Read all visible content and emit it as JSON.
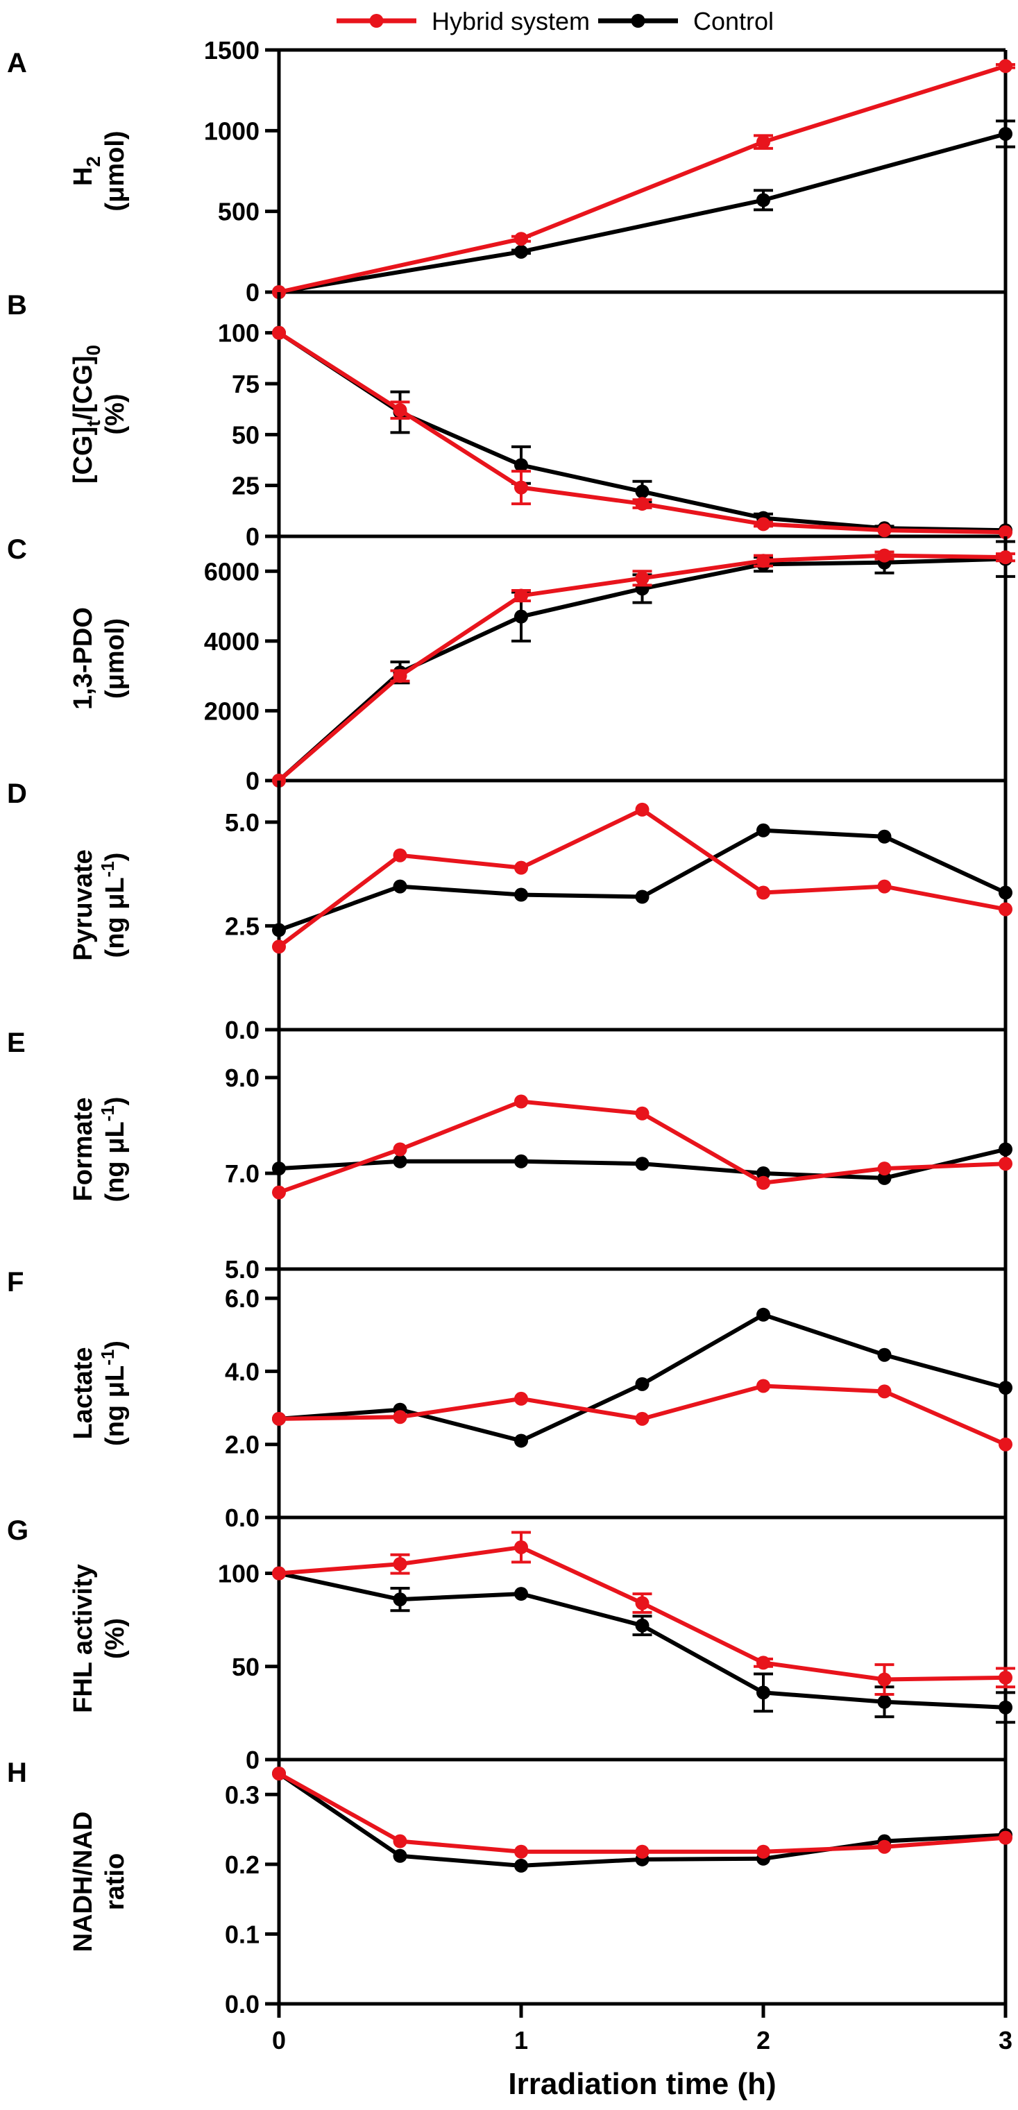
{
  "legend": [
    {
      "name": "Hybrid system",
      "color": "#e8141c"
    },
    {
      "name": "Control",
      "color": "#000000"
    }
  ],
  "x_axis": {
    "label": "Irradiation time (h)",
    "ticks": [
      0,
      1,
      2,
      3
    ],
    "tick_labels": [
      "0",
      "1",
      "2",
      "3"
    ],
    "range": [
      0,
      3
    ]
  },
  "chart_data": [
    {
      "type": "line",
      "panel": "A",
      "ylabel": [
        "H",
        "2",
        "(μmol)"
      ],
      "ylim": [
        0,
        1500
      ],
      "yticks": [
        0,
        500,
        1000,
        1500
      ],
      "ytick_labels": [
        "0",
        "500",
        "1000",
        "1500"
      ],
      "series": [
        {
          "name": "Hybrid system",
          "x": [
            0,
            1,
            2,
            3
          ],
          "y": [
            0,
            330,
            930,
            1400
          ],
          "err": [
            0,
            15,
            40,
            10
          ]
        },
        {
          "name": "Control",
          "x": [
            0,
            1,
            2,
            3
          ],
          "y": [
            0,
            250,
            570,
            980
          ],
          "err": [
            0,
            10,
            60,
            80
          ]
        }
      ]
    },
    {
      "type": "line",
      "panel": "B",
      "ylabel": [
        "[CG]",
        "t",
        "/[CG]",
        "0",
        "(%)"
      ],
      "ylim": [
        0,
        120
      ],
      "yticks": [
        0,
        25,
        50,
        75,
        100
      ],
      "ytick_labels": [
        "0",
        "25",
        "50",
        "75",
        "100"
      ],
      "series": [
        {
          "name": "Hybrid system",
          "x": [
            0,
            0.5,
            1,
            1.5,
            2,
            2.5,
            3
          ],
          "y": [
            100,
            62,
            24,
            16,
            6,
            3,
            2
          ],
          "err": [
            0,
            4,
            8,
            2,
            1,
            0,
            0
          ]
        },
        {
          "name": "Control",
          "x": [
            0,
            0.5,
            1,
            1.5,
            2,
            2.5,
            3
          ],
          "y": [
            100,
            61,
            35,
            22,
            9,
            4,
            3
          ],
          "err": [
            0,
            10,
            9,
            5,
            2,
            1,
            0
          ]
        }
      ]
    },
    {
      "type": "line",
      "panel": "C",
      "ylabel": [
        "1,3-PDO",
        "(μmol)"
      ],
      "ylim": [
        0,
        7000
      ],
      "yticks": [
        0,
        2000,
        4000,
        6000
      ],
      "ytick_labels": [
        "0",
        "2000",
        "4000",
        "6000"
      ],
      "series": [
        {
          "name": "Hybrid system",
          "x": [
            0,
            0.5,
            1,
            1.5,
            2,
            2.5,
            3
          ],
          "y": [
            0,
            3000,
            5300,
            5800,
            6300,
            6450,
            6400
          ],
          "err": [
            0,
            150,
            150,
            200,
            150,
            100,
            100
          ]
        },
        {
          "name": "Control",
          "x": [
            0,
            0.5,
            1,
            1.5,
            2,
            2.5,
            3
          ],
          "y": [
            0,
            3100,
            4700,
            5500,
            6200,
            6250,
            6350
          ],
          "err": [
            0,
            300,
            700,
            400,
            200,
            300,
            500
          ]
        }
      ]
    },
    {
      "type": "line",
      "panel": "D",
      "ylabel": [
        "Pyruvate",
        "(ng μL",
        "-1",
        ")"
      ],
      "ylim": [
        0,
        6
      ],
      "yticks": [
        0,
        2.5,
        5
      ],
      "ytick_labels": [
        "0.0",
        "2.5",
        "5.0"
      ],
      "series": [
        {
          "name": "Hybrid system",
          "x": [
            0,
            0.5,
            1,
            1.5,
            2,
            2.5,
            3
          ],
          "y": [
            2.0,
            4.2,
            3.9,
            5.3,
            3.3,
            3.45,
            2.9
          ],
          "err": [
            0,
            0,
            0,
            0,
            0,
            0,
            0
          ]
        },
        {
          "name": "Control",
          "x": [
            0,
            0.5,
            1,
            1.5,
            2,
            2.5,
            3
          ],
          "y": [
            2.4,
            3.45,
            3.25,
            3.2,
            4.8,
            4.65,
            3.3
          ],
          "err": [
            0,
            0,
            0,
            0,
            0,
            0,
            0
          ]
        }
      ]
    },
    {
      "type": "line",
      "panel": "E",
      "ylabel": [
        "Formate",
        "(ng μL",
        "-1",
        ")"
      ],
      "ylim": [
        5,
        10
      ],
      "yticks": [
        5,
        7,
        9
      ],
      "ytick_labels": [
        "5.0",
        "7.0",
        "9.0"
      ],
      "series": [
        {
          "name": "Hybrid system",
          "x": [
            0,
            0.5,
            1,
            1.5,
            2,
            2.5,
            3
          ],
          "y": [
            6.6,
            7.5,
            8.5,
            8.25,
            6.8,
            7.1,
            7.2
          ],
          "err": [
            0,
            0,
            0,
            0,
            0,
            0,
            0
          ]
        },
        {
          "name": "Control",
          "x": [
            0,
            0.5,
            1,
            1.5,
            2,
            2.5,
            3
          ],
          "y": [
            7.1,
            7.25,
            7.25,
            7.2,
            7.0,
            6.9,
            7.5
          ],
          "err": [
            0,
            0,
            0,
            0,
            0,
            0,
            0
          ]
        }
      ]
    },
    {
      "type": "line",
      "panel": "F",
      "ylabel": [
        "Lactate",
        "(ng μL",
        "-1",
        ")"
      ],
      "ylim": [
        0,
        6.8
      ],
      "yticks": [
        0,
        2,
        4,
        6
      ],
      "ytick_labels": [
        "0.0",
        "2.0",
        "4.0",
        "6.0"
      ],
      "series": [
        {
          "name": "Hybrid system",
          "x": [
            0,
            0.5,
            1,
            1.5,
            2,
            2.5,
            3
          ],
          "y": [
            2.7,
            2.75,
            3.25,
            2.7,
            3.6,
            3.45,
            2.0
          ],
          "err": [
            0,
            0,
            0,
            0,
            0,
            0,
            0
          ]
        },
        {
          "name": "Control",
          "x": [
            0,
            0.5,
            1,
            1.5,
            2,
            2.5,
            3
          ],
          "y": [
            2.7,
            2.95,
            2.1,
            3.65,
            5.55,
            4.45,
            3.55
          ],
          "err": [
            0,
            0,
            0,
            0,
            0,
            0,
            0
          ]
        }
      ]
    },
    {
      "type": "line",
      "panel": "G",
      "ylabel": [
        "FHL activity",
        "(%)"
      ],
      "ylim": [
        0,
        130
      ],
      "yticks": [
        0,
        50,
        100
      ],
      "ytick_labels": [
        "0",
        "50",
        "100"
      ],
      "series": [
        {
          "name": "Hybrid system",
          "x": [
            0,
            0.5,
            1,
            1.5,
            2,
            2.5,
            3
          ],
          "y": [
            100,
            105,
            114,
            84,
            52,
            43,
            44
          ],
          "err": [
            0,
            5,
            8,
            5,
            2,
            8,
            5
          ]
        },
        {
          "name": "Control",
          "x": [
            0,
            0.5,
            1,
            1.5,
            2,
            2.5,
            3
          ],
          "y": [
            100,
            86,
            89,
            72,
            36,
            31,
            28
          ],
          "err": [
            0,
            6,
            0,
            5,
            10,
            8,
            8
          ]
        }
      ]
    },
    {
      "type": "line",
      "panel": "H",
      "ylabel": [
        "NADH/NAD",
        "ratio"
      ],
      "ylim": [
        0,
        0.35
      ],
      "yticks": [
        0,
        0.1,
        0.2,
        0.3
      ],
      "ytick_labels": [
        "0.0",
        "0.1",
        "0.2",
        "0.3"
      ],
      "series": [
        {
          "name": "Hybrid system",
          "x": [
            0,
            0.5,
            1,
            1.5,
            2,
            2.5,
            3
          ],
          "y": [
            0.33,
            0.233,
            0.218,
            0.218,
            0.218,
            0.225,
            0.238
          ],
          "err": [
            0,
            0,
            0,
            0,
            0,
            0,
            0
          ]
        },
        {
          "name": "Control",
          "x": [
            0,
            0.5,
            1,
            1.5,
            2,
            2.5,
            3
          ],
          "y": [
            0.33,
            0.212,
            0.198,
            0.207,
            0.208,
            0.233,
            0.242
          ],
          "err": [
            0,
            0,
            0,
            0,
            0,
            0,
            0
          ]
        }
      ]
    }
  ]
}
